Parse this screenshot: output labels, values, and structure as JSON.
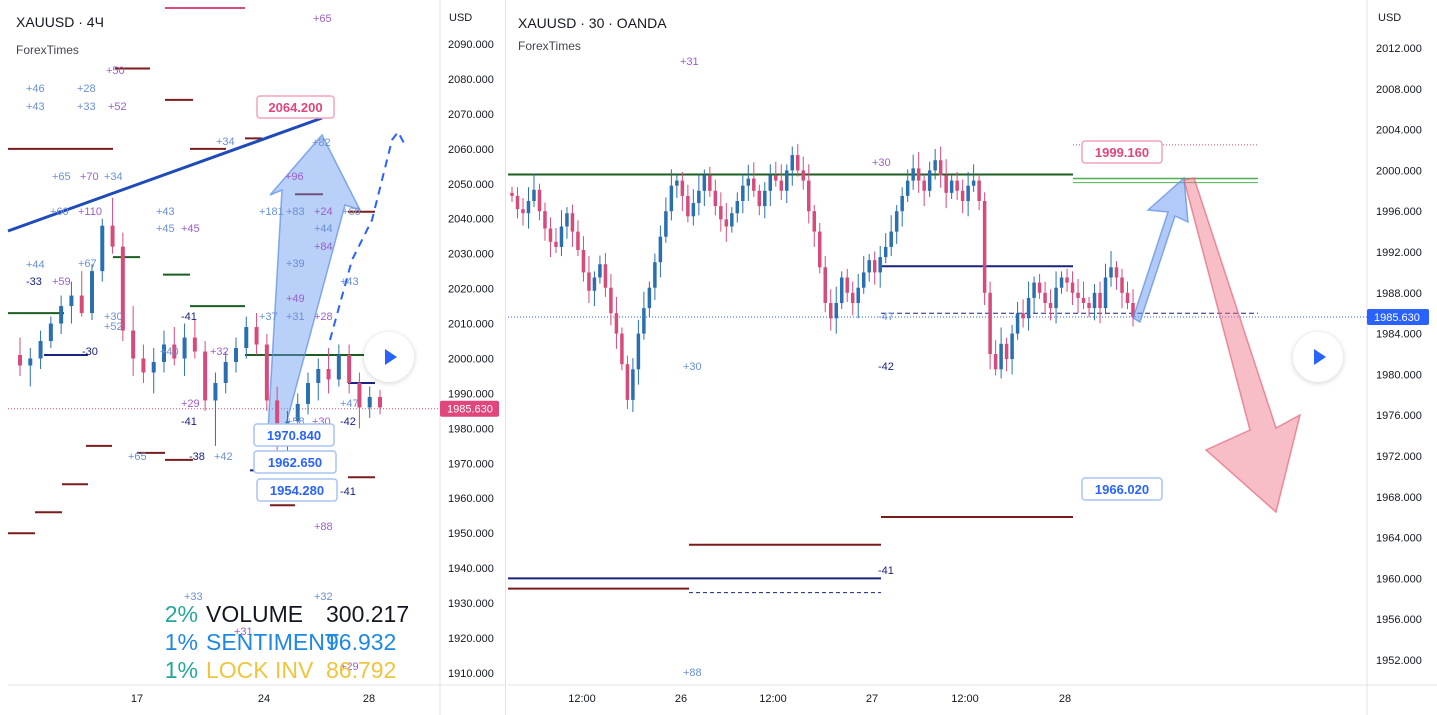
{
  "currency_label": "USD",
  "left_chart": {
    "symbol": "XAUUSD · 4Ч",
    "source": "ForexTimes",
    "price_ticks": [
      "2090.000",
      "2080.000",
      "2070.000",
      "2060.000",
      "2050.000",
      "2040.000",
      "2030.000",
      "2020.000",
      "2010.000",
      "2000.000",
      "1990.000",
      "1980.000",
      "1970.000",
      "1960.000",
      "1950.000",
      "1940.000",
      "1930.000",
      "1920.000",
      "1910.000"
    ],
    "time_ticks": [
      "17",
      "24",
      "28"
    ],
    "current_price": "1985.630",
    "labels": [
      "2064.200",
      "1970.840",
      "1962.650",
      "1954.280"
    ],
    "stats": [
      {
        "pct": "2%",
        "name": "VOLUME",
        "value": "300.217",
        "pct_color": "#26a69a",
        "name_color": "#131722",
        "value_color": "#131722"
      },
      {
        "pct": "1%",
        "name": "SENTIMENT",
        "value": "96.932",
        "pct_color": "#1e88e5",
        "name_color": "#1e88e5",
        "value_color": "#1e88e5"
      },
      {
        "pct": "1%",
        "name": "LOCK INV",
        "value": "86.792",
        "pct_color": "#26a69a",
        "name_color": "#f0c53c",
        "value_color": "#f0c53c"
      }
    ],
    "annotations": [
      "+65",
      "+46",
      "+28",
      "+50",
      "+43",
      "+33",
      "+52",
      "+34",
      "+65",
      "+70",
      "+34",
      "+60",
      "+110",
      "+43",
      "+45",
      "+45",
      "+44",
      "-33",
      "+59",
      "+67",
      "+82",
      "+96",
      "+181",
      "+83",
      "+24",
      "+66",
      "+44",
      "+84",
      "+39",
      "+43",
      "+49",
      "+37",
      "+31",
      "+28",
      "-41",
      "+40",
      "+32",
      "+30",
      "+58",
      "+30",
      "-42",
      "+47",
      "+29",
      "-41",
      "+65",
      "-38",
      "+42",
      "-41",
      "+88",
      "+33",
      "+32",
      "+31",
      "-30",
      "+52",
      "+29"
    ],
    "chart_data": {
      "type": "candlestick",
      "y_range": [
        1905,
        2095
      ],
      "x_ticks": [
        "17",
        "24",
        "28"
      ],
      "current_price": 1985.63,
      "trendline": {
        "from": 2045,
        "to": 2064.2
      },
      "labeled_prices": [
        2064.2,
        1970.84,
        1962.65,
        1954.28
      ],
      "ohlc": [
        [
          2001,
          2006,
          1995,
          1998
        ],
        [
          1998,
          2003,
          1992,
          2000
        ],
        [
          2000,
          2008,
          1997,
          2005
        ],
        [
          2005,
          2012,
          2003,
          2010
        ],
        [
          2010,
          2018,
          2007,
          2015
        ],
        [
          2015,
          2022,
          2010,
          2018
        ],
        [
          2018,
          2025,
          2012,
          2013
        ],
        [
          2013,
          2027,
          2011,
          2025
        ],
        [
          2025,
          2040,
          2022,
          2038
        ],
        [
          2038,
          2046,
          2030,
          2032
        ],
        [
          2032,
          2036,
          2005,
          2008
        ],
        [
          2008,
          2015,
          1995,
          2000
        ],
        [
          2000,
          2004,
          1993,
          1996
        ],
        [
          1996,
          2003,
          1990,
          1999
        ],
        [
          1999,
          2008,
          1996,
          2004
        ],
        [
          2004,
          2009,
          1998,
          2000
        ],
        [
          2000,
          2010,
          1995,
          2006
        ],
        [
          2006,
          2011,
          2000,
          2002
        ],
        [
          2002,
          2005,
          1985,
          1988
        ],
        [
          1988,
          1996,
          1975,
          1993
        ],
        [
          1993,
          2002,
          1990,
          1999
        ],
        [
          1999,
          2006,
          1996,
          2003
        ],
        [
          2003,
          2012,
          2000,
          2009
        ],
        [
          2009,
          2013,
          2001,
          2004
        ],
        [
          2004,
          2007,
          1985,
          1988
        ],
        [
          1988,
          1992,
          1972,
          1975
        ],
        [
          1975,
          1985,
          1970,
          1982
        ],
        [
          1982,
          1990,
          1978,
          1987
        ],
        [
          1987,
          1996,
          1984,
          1993
        ],
        [
          1993,
          2000,
          1988,
          1997
        ],
        [
          1997,
          2003,
          1990,
          1994
        ],
        [
          1994,
          2004,
          1992,
          2001
        ],
        [
          2001,
          2004,
          1990,
          1993
        ],
        [
          1993,
          1996,
          1980,
          1986
        ],
        [
          1986,
          1992,
          1983,
          1989
        ],
        [
          1989,
          1991,
          1984,
          1986
        ]
      ]
    }
  },
  "right_chart": {
    "symbol": "XAUUSD · 30 · OANDA",
    "source": "ForexTimes",
    "price_ticks": [
      "2012.000",
      "2008.000",
      "2004.000",
      "2000.000",
      "1996.000",
      "1992.000",
      "1988.000",
      "1984.000",
      "1980.000",
      "1976.000",
      "1972.000",
      "1968.000",
      "1964.000",
      "1960.000",
      "1956.000",
      "1952.000"
    ],
    "time_ticks": [
      "12:00",
      "26",
      "12:00",
      "27",
      "12:00",
      "28"
    ],
    "current_price": "1985.630",
    "labels": [
      "1999.160",
      "1966.020"
    ],
    "annotations": [
      "+31",
      "+30",
      "-47",
      "+30",
      "-42",
      "-41",
      "+88"
    ],
    "chart_data": {
      "type": "candlestick",
      "y_range": [
        1948,
        2016
      ],
      "x_ticks": [
        "12:00",
        "26",
        "12:00",
        "27",
        "12:00",
        "28"
      ],
      "current_price": 1985.63,
      "levels": [
        {
          "price": 1999.6,
          "color": "#1b5e20"
        },
        {
          "price": 1990.6,
          "color": "#1a237e"
        },
        {
          "price": 1966.02,
          "color": "#7b1c1c"
        },
        {
          "price": 1963.3,
          "color": "#7b1c1c"
        },
        {
          "price": 1960.0,
          "color": "#1a237e"
        },
        {
          "price": 1959.0,
          "color": "#7b1c1c"
        }
      ],
      "labeled_prices": [
        1999.16,
        1966.02
      ],
      "closes": [
        1997.5,
        1996.2,
        1995.8,
        1997.0,
        1998.1,
        1996.0,
        1994.3,
        1993.0,
        1992.5,
        1994.5,
        1995.8,
        1994.0,
        1992.2,
        1990.0,
        1988.2,
        1989.5,
        1990.8,
        1988.5,
        1986.0,
        1984.0,
        1981.0,
        1977.5,
        1980.5,
        1984.0,
        1986.5,
        1988.5,
        1991.0,
        1993.5,
        1996.0,
        1998.5,
        1999.0,
        1997.5,
        1995.5,
        1996.8,
        1998.0,
        1999.5,
        1998.0,
        1996.5,
        1995.2,
        1994.5,
        1995.8,
        1997.0,
        1998.5,
        1999.2,
        1998.0,
        1996.5,
        1998.0,
        1999.5,
        1999.0,
        1998.0,
        2000.0,
        2001.5,
        2000.0,
        1999.0,
        1996.0,
        1994.0,
        1990.5,
        1987.0,
        1985.5,
        1987.0,
        1989.5,
        1988.0,
        1987.0,
        1988.5,
        1990.0,
        1991.2,
        1990.0,
        1991.5,
        1992.5,
        1994.0,
        1996.0,
        1997.5,
        1999.0,
        2000.2,
        1999.0,
        1998.0,
        2000.0,
        2001.0,
        1999.5,
        1997.8,
        1999.0,
        1998.0,
        1997.0,
        1998.5,
        1999.0,
        1997.0,
        1988.0,
        1982.0,
        1980.5,
        1983.0,
        1981.5,
        1984.0,
        1986.0,
        1985.5,
        1987.5,
        1989.0,
        1988.0,
        1987.0,
        1986.5,
        1988.5,
        1989.5,
        1989.0,
        1988.0,
        1987.5,
        1987.0,
        1986.5,
        1988.0,
        1986.5,
        1989.5,
        1990.5,
        1989.5,
        1988.0,
        1987.0,
        1985.6
      ]
    }
  }
}
